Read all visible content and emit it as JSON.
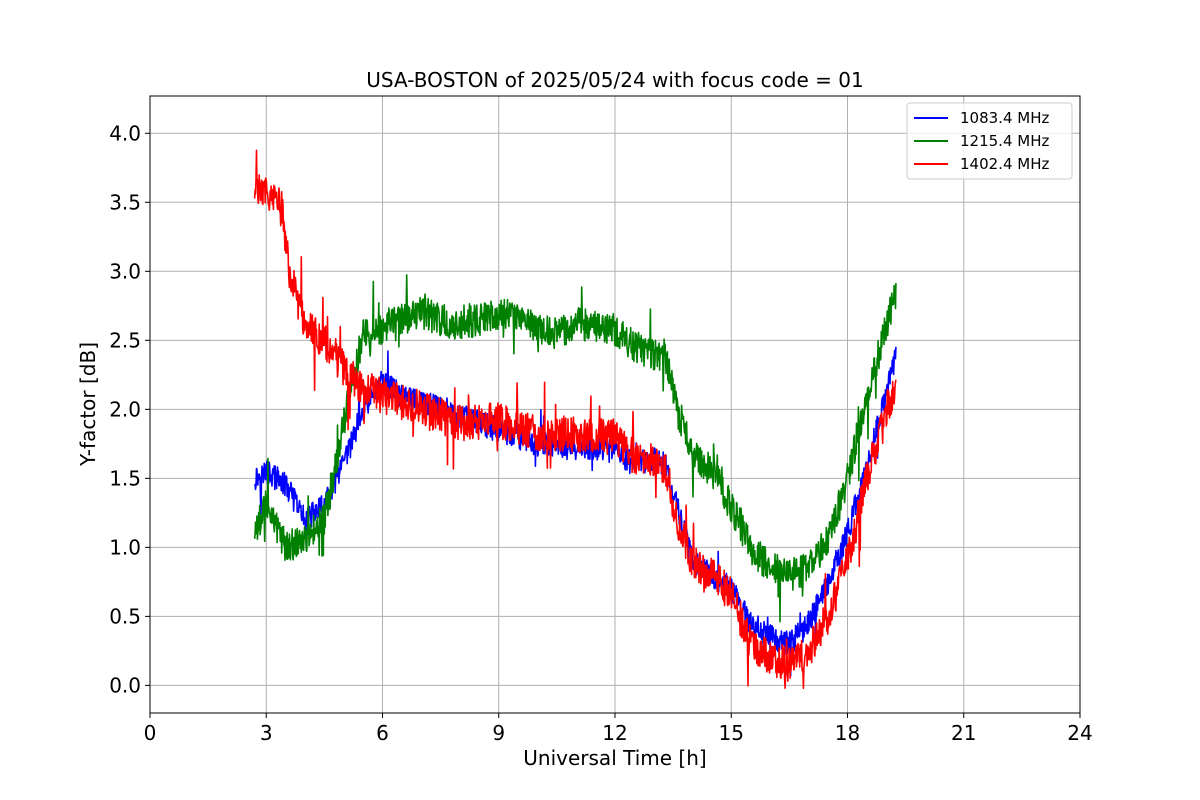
{
  "chart_data": {
    "type": "line",
    "title": "USA-BOSTON of 2025/05/24 with focus code = 01",
    "xlabel": "Universal Time [h]",
    "ylabel": "Y-factor [dB]",
    "xlim": [
      0,
      24
    ],
    "ylim": [
      -0.2,
      4.27
    ],
    "xticks": [
      0,
      3,
      6,
      9,
      12,
      15,
      18,
      21,
      24
    ],
    "xtick_labels": [
      "0",
      "3",
      "6",
      "9",
      "12",
      "15",
      "18",
      "21",
      "24"
    ],
    "yticks": [
      0.0,
      0.5,
      1.0,
      1.5,
      2.0,
      2.5,
      3.0,
      3.5,
      4.0
    ],
    "ytick_labels": [
      "0.0",
      "0.5",
      "1.0",
      "1.5",
      "2.0",
      "2.5",
      "3.0",
      "3.5",
      "4.0"
    ],
    "grid": true,
    "legend_position": "top-right",
    "series": [
      {
        "name": "1083.4 MHz",
        "color": "#0000ff",
        "noise": 0.09,
        "x": [
          2.7,
          3.0,
          3.5,
          4.0,
          4.5,
          5.0,
          5.5,
          6.0,
          6.5,
          7.0,
          8.0,
          9.0,
          10.0,
          11.0,
          12.0,
          12.5,
          13.0,
          13.3,
          13.6,
          14.0,
          14.5,
          15.0,
          15.5,
          16.0,
          16.5,
          17.0,
          17.5,
          18.0,
          18.5,
          19.0,
          19.25
        ],
        "y": [
          1.5,
          1.55,
          1.45,
          1.2,
          1.3,
          1.6,
          2.0,
          2.2,
          2.1,
          2.05,
          1.95,
          1.85,
          1.75,
          1.72,
          1.7,
          1.6,
          1.65,
          1.6,
          1.3,
          0.9,
          0.8,
          0.7,
          0.45,
          0.35,
          0.3,
          0.45,
          0.75,
          1.1,
          1.6,
          2.1,
          2.4
        ]
      },
      {
        "name": "1215.4 MHz",
        "color": "#008000",
        "noise": 0.12,
        "x": [
          2.7,
          3.0,
          3.5,
          4.0,
          4.5,
          5.0,
          5.5,
          6.0,
          6.5,
          7.0,
          7.5,
          8.0,
          8.5,
          9.0,
          9.5,
          10.0,
          10.5,
          11.0,
          11.5,
          12.0,
          12.5,
          13.0,
          13.3,
          13.6,
          14.0,
          14.5,
          15.0,
          15.5,
          16.0,
          16.5,
          17.0,
          17.5,
          18.0,
          18.5,
          19.0,
          19.25
        ],
        "y": [
          1.1,
          1.3,
          1.0,
          1.05,
          1.2,
          1.9,
          2.55,
          2.6,
          2.65,
          2.7,
          2.65,
          2.6,
          2.65,
          2.7,
          2.65,
          2.6,
          2.55,
          2.62,
          2.6,
          2.58,
          2.45,
          2.4,
          2.4,
          2.0,
          1.7,
          1.55,
          1.3,
          1.0,
          0.85,
          0.8,
          0.85,
          1.05,
          1.5,
          2.1,
          2.6,
          2.85
        ]
      },
      {
        "name": "1402.4 MHz",
        "color": "#ff0000",
        "noise": 0.13,
        "x": [
          2.7,
          3.0,
          3.4,
          3.6,
          4.0,
          4.5,
          5.0,
          5.5,
          6.0,
          6.5,
          7.0,
          8.0,
          9.0,
          10.0,
          11.0,
          12.0,
          12.5,
          13.0,
          13.3,
          13.6,
          14.0,
          14.5,
          15.0,
          15.5,
          16.0,
          16.5,
          17.0,
          17.5,
          18.0,
          18.5,
          19.0,
          19.25
        ],
        "y": [
          3.55,
          3.6,
          3.45,
          3.0,
          2.6,
          2.5,
          2.3,
          2.15,
          2.1,
          2.05,
          2.0,
          1.9,
          1.92,
          1.83,
          1.82,
          1.8,
          1.65,
          1.62,
          1.58,
          1.2,
          0.9,
          0.8,
          0.65,
          0.3,
          0.2,
          0.15,
          0.25,
          0.5,
          0.9,
          1.5,
          2.0,
          2.15
        ]
      }
    ]
  }
}
